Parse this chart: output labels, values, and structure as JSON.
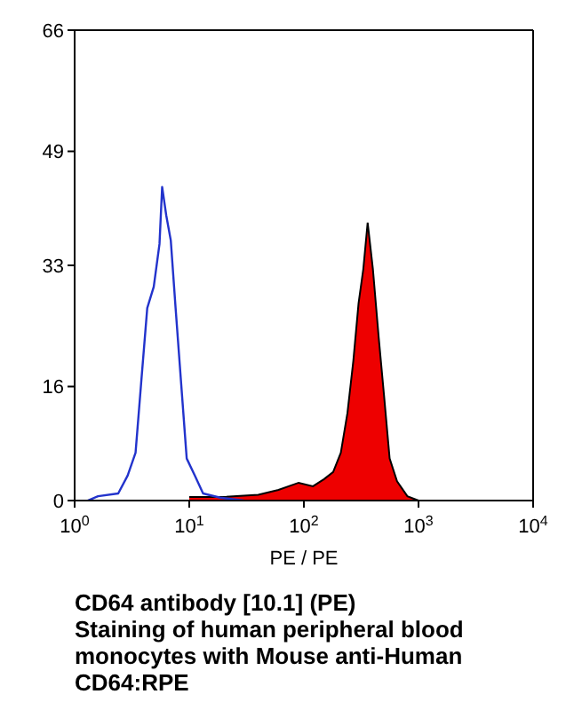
{
  "chart_data": {
    "type": "area",
    "xlabel": "PE / PE",
    "log": "x",
    "xlim": [
      1,
      10000
    ],
    "xticks": [
      {
        "value": 1,
        "label": "10$^{0}$"
      },
      {
        "value": 10,
        "label": "10$^{1}$"
      },
      {
        "value": 100,
        "label": "10$^{2}$"
      },
      {
        "value": 1000,
        "label": "10$^{3}$"
      },
      {
        "value": 10000,
        "label": "10$^{4}$"
      }
    ],
    "ylim": [
      0,
      66
    ],
    "yticks": [
      0,
      16,
      33,
      49,
      66
    ],
    "marker": "none",
    "series": [
      {
        "type": "line",
        "color": "#2233cc",
        "x": [
          1.3,
          1.6,
          2.4,
          2.9,
          3.4,
          3.8,
          4.3,
          4.9,
          5.5,
          5.8,
          6.3,
          6.9,
          7.6,
          8.5,
          9.5,
          11.2,
          13.2,
          18.6,
          30
        ],
        "values": [
          0,
          0.6,
          1,
          3.5,
          6.7,
          16.4,
          27,
          30,
          36,
          44,
          40,
          36.5,
          27,
          16.4,
          5.9,
          3.5,
          1,
          0.4,
          0
        ]
      },
      {
        "color": "#ee0000",
        "x": [
          10,
          20,
          40,
          60,
          90,
          120,
          150,
          180,
          210,
          240,
          270,
          300,
          330,
          360,
          400,
          450,
          500,
          560,
          650,
          800,
          1000
        ],
        "values": [
          0.5,
          0.5,
          0.8,
          1.5,
          2.5,
          2,
          3,
          4,
          6.7,
          12.3,
          19.6,
          27.7,
          32.5,
          39,
          32.5,
          22.8,
          14.8,
          5.9,
          2.7,
          0.6,
          0
        ]
      }
    ],
    "annotations": [
      "CD64 antibody [10.1] (PE)",
      "Staining of human peripheral blood monocytes with Mouse anti-Human CD64:RPE"
    ]
  }
}
